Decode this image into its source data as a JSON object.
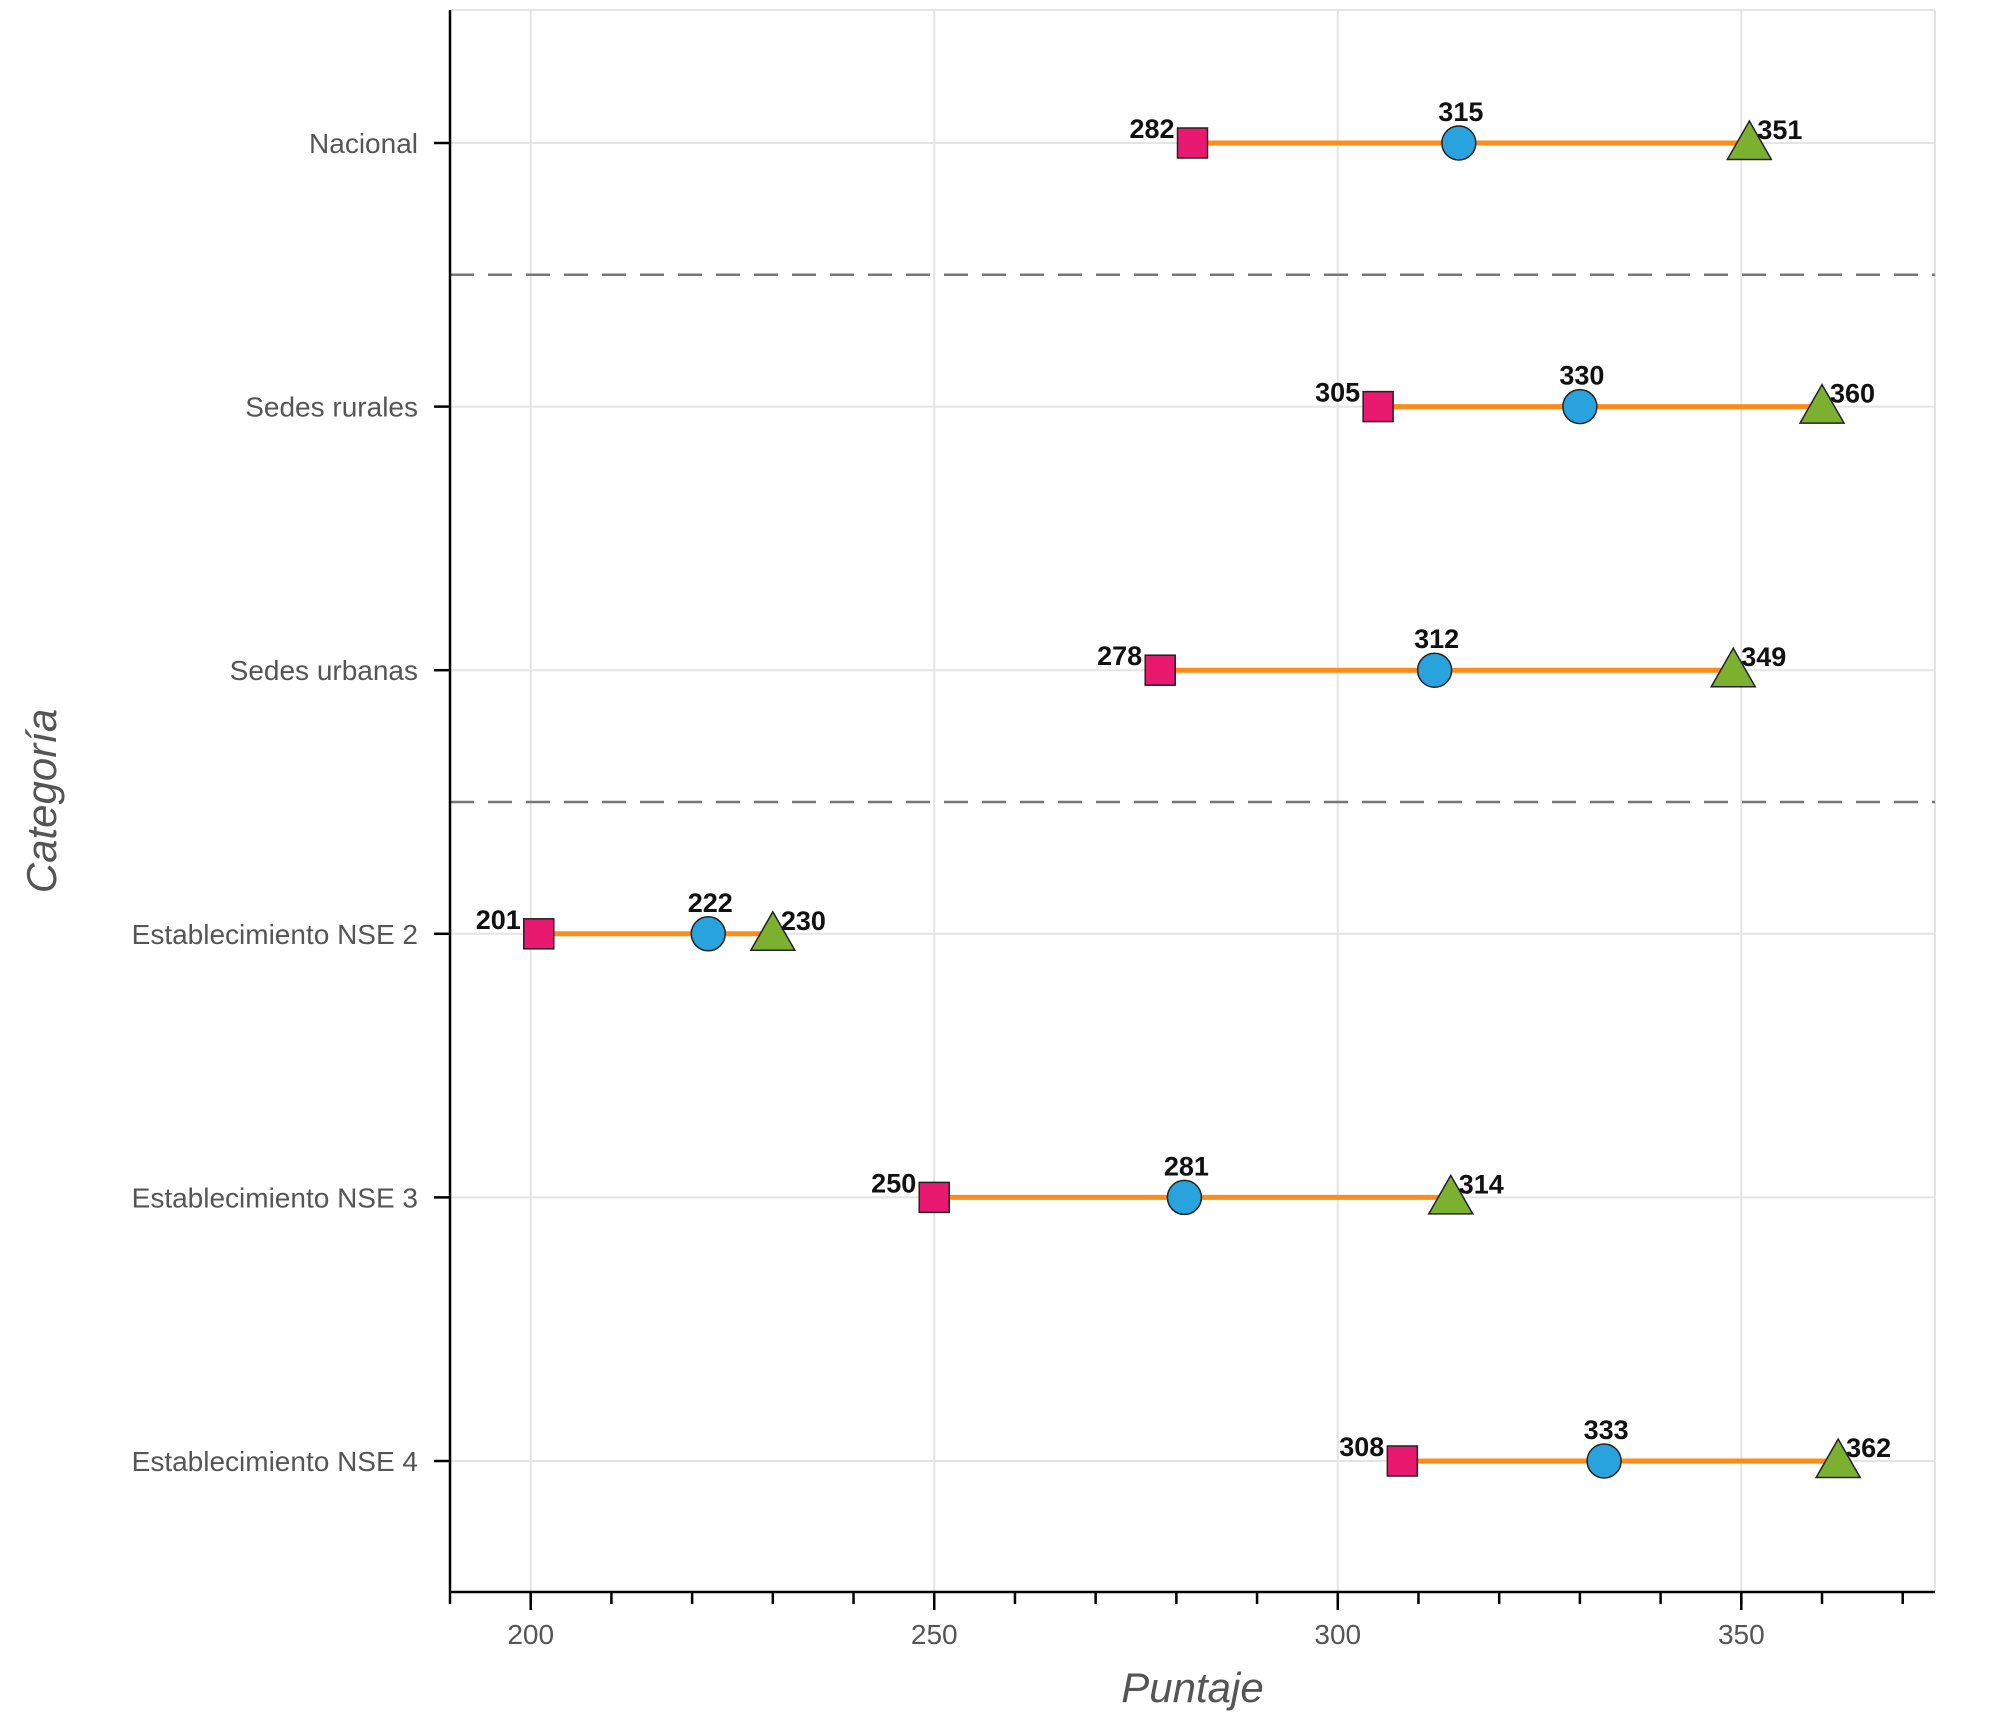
{
  "chart_data": {
    "type": "dot-range",
    "xlabel": "Puntaje",
    "ylabel": "Categoría",
    "xlim": [
      190,
      374
    ],
    "x_ticks": [
      200,
      250,
      300,
      350
    ],
    "minor_step": 10,
    "grid": true,
    "categories": [
      "Nacional",
      "Sedes rurales",
      "Sedes urbanas",
      "Establecimiento NSE 2",
      "Establecimiento NSE 3",
      "Establecimiento NSE 4"
    ],
    "separators_after": [
      "Nacional",
      "Sedes urbanas"
    ],
    "series": [
      {
        "marker": "square",
        "color": "#e8196f",
        "values": [
          282,
          305,
          278,
          201,
          250,
          308
        ]
      },
      {
        "marker": "circle",
        "color": "#29a3dd",
        "values": [
          315,
          330,
          312,
          222,
          281,
          333
        ]
      },
      {
        "marker": "triangle",
        "color": "#7cb130",
        "values": [
          351,
          360,
          349,
          230,
          314,
          362
        ]
      }
    ],
    "line_color": "#ff8c1a"
  }
}
